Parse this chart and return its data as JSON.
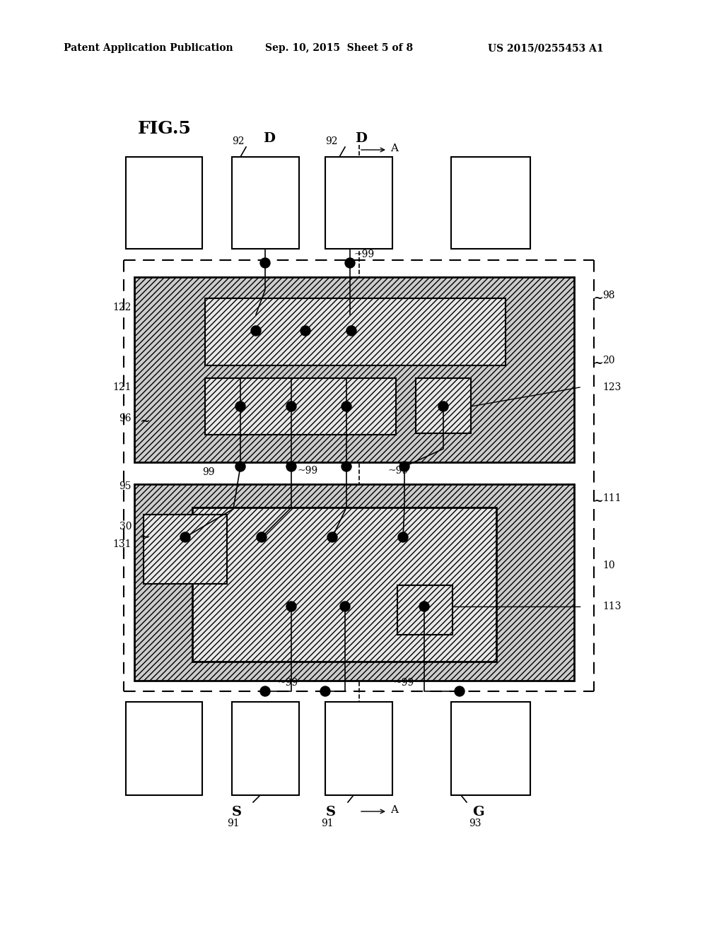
{
  "header_left": "Patent Application Publication",
  "header_mid": "Sep. 10, 2015  Sheet 5 of 8",
  "header_right": "US 2015/0255453 A1",
  "background": "#ffffff",
  "line_color": "#000000"
}
